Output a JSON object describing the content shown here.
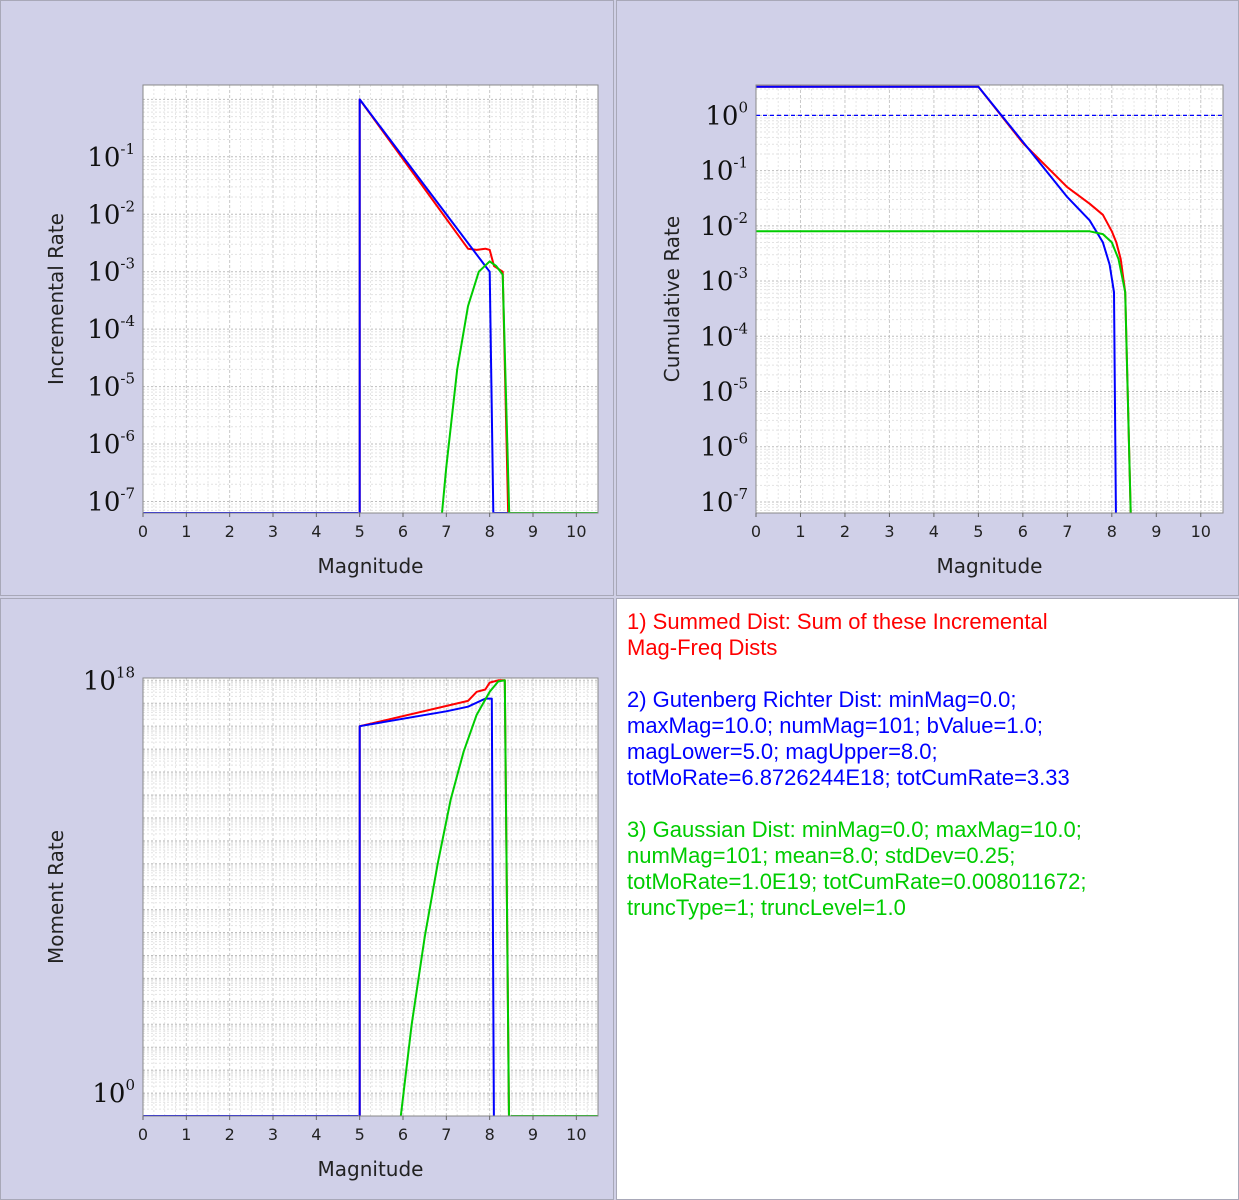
{
  "colors": {
    "summed": "#ff0000",
    "gutenberg": "#0000ff",
    "gaussian": "#00cc00",
    "plot_bg": "#ffffff",
    "panel_bg": "#d0d0e8"
  },
  "chart_data": [
    {
      "id": "incremental",
      "type": "line",
      "xlabel": "Magnitude",
      "ylabel": "Incremental Rate",
      "xlim": [
        0,
        10.5
      ],
      "xticks": [
        "0",
        "1",
        "2",
        "3",
        "4",
        "5",
        "6",
        "7",
        "8",
        "9",
        "10"
      ],
      "yscale": "log",
      "ylim_log10": [
        -7.2,
        0.25
      ],
      "yticks": [
        {
          "base": "10",
          "exp": "-1",
          "log": -1
        },
        {
          "base": "10",
          "exp": "-2",
          "log": -2
        },
        {
          "base": "10",
          "exp": "-3",
          "log": -3
        },
        {
          "base": "10",
          "exp": "-4",
          "log": -4
        },
        {
          "base": "10",
          "exp": "-5",
          "log": -5
        },
        {
          "base": "10",
          "exp": "-6",
          "log": -6
        },
        {
          "base": "10",
          "exp": "-7",
          "log": -7
        }
      ],
      "series": [
        {
          "color": "summed",
          "points": [
            [
              0,
              -7.2
            ],
            [
              4.95,
              -7.2
            ],
            [
              4.95,
              -8
            ],
            [
              5.0,
              -8
            ],
            [
              5.0,
              0.0
            ],
            [
              7.5,
              -2.6
            ],
            [
              7.7,
              -2.62
            ],
            [
              7.9,
              -2.6
            ],
            [
              8.0,
              -2.62
            ],
            [
              8.1,
              -2.9
            ],
            [
              8.3,
              -3.0
            ],
            [
              8.45,
              -8
            ],
            [
              8.5,
              -7.2
            ],
            [
              10.5,
              -7.2
            ]
          ]
        },
        {
          "color": "gutenberg",
          "points": [
            [
              0,
              -7.2
            ],
            [
              4.95,
              -7.2
            ],
            [
              4.95,
              -8
            ],
            [
              5.0,
              -8
            ],
            [
              5.0,
              0.0
            ],
            [
              7.9,
              -2.9
            ],
            [
              8.0,
              -3.0
            ],
            [
              8.1,
              -8
            ],
            [
              8.1,
              -7.2
            ],
            [
              10.5,
              -7.2
            ]
          ]
        },
        {
          "color": "gaussian",
          "points": [
            [
              6.9,
              -7.2
            ],
            [
              7.0,
              -6.4
            ],
            [
              7.25,
              -4.7
            ],
            [
              7.5,
              -3.6
            ],
            [
              7.75,
              -3.0
            ],
            [
              8.0,
              -2.82
            ],
            [
              8.15,
              -2.9
            ],
            [
              8.3,
              -3.05
            ],
            [
              8.45,
              -7.2
            ],
            [
              8.45,
              -7.2
            ],
            [
              10.5,
              -7.2
            ]
          ]
        }
      ]
    },
    {
      "id": "cumulative",
      "type": "line",
      "xlabel": "Magnitude",
      "ylabel": "Cumulative Rate",
      "xlim": [
        0,
        10.5
      ],
      "xticks": [
        "0",
        "1",
        "2",
        "3",
        "4",
        "5",
        "6",
        "7",
        "8",
        "9",
        "10"
      ],
      "yscale": "log",
      "ylim_log10": [
        -7.2,
        0.55
      ],
      "yticks": [
        {
          "base": "10",
          "exp": "0",
          "log": 0
        },
        {
          "base": "10",
          "exp": "-1",
          "log": -1
        },
        {
          "base": "10",
          "exp": "-2",
          "log": -2
        },
        {
          "base": "10",
          "exp": "-3",
          "log": -3
        },
        {
          "base": "10",
          "exp": "-4",
          "log": -4
        },
        {
          "base": "10",
          "exp": "-5",
          "log": -5
        },
        {
          "base": "10",
          "exp": "-6",
          "log": -6
        },
        {
          "base": "10",
          "exp": "-7",
          "log": -7
        }
      ],
      "reference_line_log10": 0,
      "series": [
        {
          "color": "summed",
          "points": [
            [
              0,
              0.52
            ],
            [
              5.0,
              0.52
            ],
            [
              6.0,
              -0.5
            ],
            [
              7.0,
              -1.3
            ],
            [
              7.5,
              -1.6
            ],
            [
              7.8,
              -1.8
            ],
            [
              8.0,
              -2.1
            ],
            [
              8.1,
              -2.3
            ],
            [
              8.2,
              -2.6
            ],
            [
              8.3,
              -3.2
            ],
            [
              8.45,
              -8
            ]
          ]
        },
        {
          "color": "gutenberg",
          "points": [
            [
              0,
              0.52
            ],
            [
              5.0,
              0.52
            ],
            [
              6.0,
              -0.48
            ],
            [
              7.0,
              -1.48
            ],
            [
              7.5,
              -1.9
            ],
            [
              7.8,
              -2.3
            ],
            [
              7.95,
              -2.7
            ],
            [
              8.05,
              -3.2
            ],
            [
              8.1,
              -8
            ]
          ]
        },
        {
          "color": "gaussian",
          "points": [
            [
              0,
              -2.1
            ],
            [
              7.5,
              -2.1
            ],
            [
              7.8,
              -2.15
            ],
            [
              8.0,
              -2.3
            ],
            [
              8.15,
              -2.6
            ],
            [
              8.3,
              -3.2
            ],
            [
              8.45,
              -8
            ]
          ]
        }
      ]
    },
    {
      "id": "moment",
      "type": "line",
      "xlabel": "Magnitude",
      "ylabel": "Moment Rate",
      "xlim": [
        0,
        10.5
      ],
      "xticks": [
        "0",
        "1",
        "2",
        "3",
        "4",
        "5",
        "6",
        "7",
        "8",
        "9",
        "10"
      ],
      "yscale": "log",
      "ylim_log10": [
        -1.0,
        18.1
      ],
      "yticks": [
        {
          "base": "10",
          "exp": "18",
          "log": 18
        },
        {
          "base": "10",
          "exp": "0",
          "log": 0
        }
      ],
      "series": [
        {
          "color": "summed",
          "points": [
            [
              0,
              -1
            ],
            [
              4.95,
              -1
            ],
            [
              5.0,
              -2
            ],
            [
              5.0,
              16.0
            ],
            [
              7.5,
              17.1
            ],
            [
              7.7,
              17.5
            ],
            [
              7.9,
              17.6
            ],
            [
              8.0,
              17.9
            ],
            [
              8.2,
              18.0
            ],
            [
              8.35,
              18.0
            ],
            [
              8.45,
              -2
            ]
          ]
        },
        {
          "color": "gutenberg",
          "points": [
            [
              0,
              -1
            ],
            [
              4.95,
              -1
            ],
            [
              5.0,
              -2
            ],
            [
              5.0,
              16.0
            ],
            [
              7.0,
              16.65
            ],
            [
              7.5,
              16.85
            ],
            [
              7.9,
              17.2
            ],
            [
              8.05,
              17.2
            ],
            [
              8.1,
              -2
            ]
          ]
        },
        {
          "color": "gaussian",
          "points": [
            [
              5.95,
              -1
            ],
            [
              6.2,
              3.0
            ],
            [
              6.5,
              6.8
            ],
            [
              6.8,
              10.0
            ],
            [
              7.1,
              12.8
            ],
            [
              7.4,
              14.9
            ],
            [
              7.7,
              16.5
            ],
            [
              8.0,
              17.5
            ],
            [
              8.2,
              17.95
            ],
            [
              8.35,
              18.0
            ],
            [
              8.45,
              -2
            ],
            [
              8.5,
              -1
            ],
            [
              10.5,
              -1
            ]
          ]
        }
      ]
    }
  ],
  "legend": [
    {
      "color": "summed",
      "text": "1) Summed Dist: Sum of these Incremental\nMag-Freq Dists"
    },
    {
      "color": "gutenberg",
      "text": "2) Gutenberg Richter Dist: minMag=0.0;\nmaxMag=10.0; numMag=101; bValue=1.0;\nmagLower=5.0; magUpper=8.0;\ntotMoRate=6.8726244E18; totCumRate=3.33"
    },
    {
      "color": "gaussian",
      "text": "3) Gaussian Dist: minMag=0.0; maxMag=10.0;\nnumMag=101; mean=8.0; stdDev=0.25;\ntotMoRate=1.0E19; totCumRate=0.008011672;\ntruncType=1; truncLevel=1.0"
    }
  ]
}
